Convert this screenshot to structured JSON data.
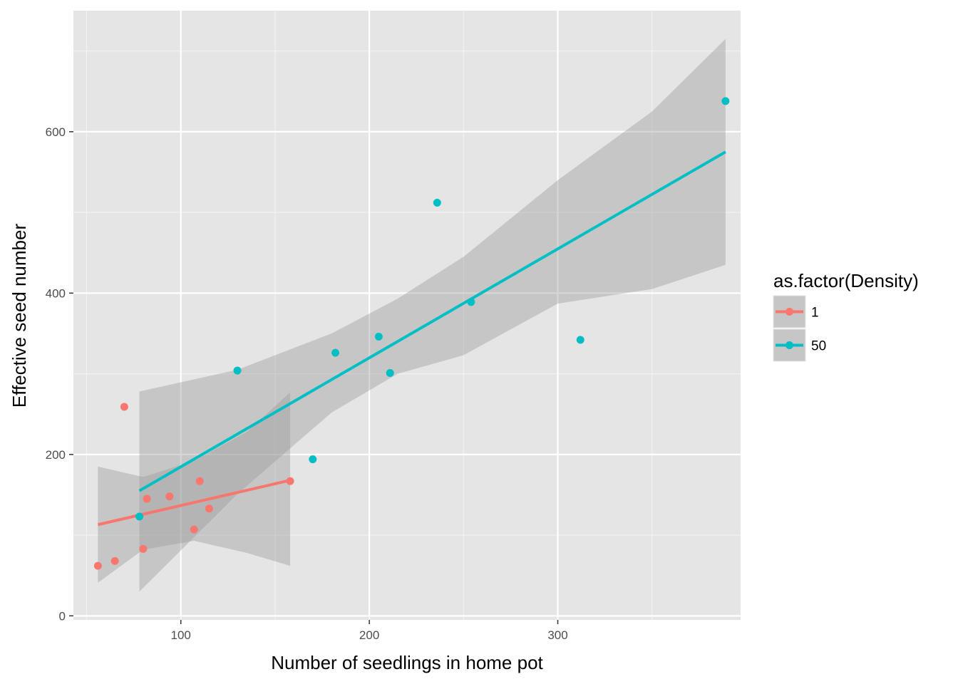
{
  "chart_data": {
    "type": "scatter",
    "xlabel": "Number of seedlings in home pot",
    "ylabel": "Effective seed number",
    "xlim": [
      43,
      397
    ],
    "ylim": [
      -5,
      750
    ],
    "x_ticks": [
      100,
      200,
      300
    ],
    "y_ticks": [
      0,
      200,
      400,
      600
    ],
    "x_minor": [
      50,
      150,
      250,
      350
    ],
    "y_minor": [
      100,
      300,
      500,
      700
    ],
    "grid": true,
    "panel_color": "#e5e5e5",
    "legend": {
      "title": "as.factor(Density)",
      "position": "right",
      "items": [
        {
          "label": "1",
          "color": "#f8766d"
        },
        {
          "label": "50",
          "color": "#00bfc4"
        }
      ]
    },
    "series": [
      {
        "name": "1",
        "color": "#f8766d",
        "points": [
          {
            "x": 56,
            "y": 62
          },
          {
            "x": 65,
            "y": 68
          },
          {
            "x": 70,
            "y": 259
          },
          {
            "x": 80,
            "y": 83
          },
          {
            "x": 82,
            "y": 145
          },
          {
            "x": 94,
            "y": 148
          },
          {
            "x": 107,
            "y": 107
          },
          {
            "x": 110,
            "y": 167
          },
          {
            "x": 115,
            "y": 133
          },
          {
            "x": 158,
            "y": 167
          }
        ],
        "fit": {
          "x": [
            56,
            158
          ],
          "y": [
            113,
            168
          ]
        },
        "ci": {
          "x": [
            56,
            80,
            107,
            135,
            158
          ],
          "lower": [
            41,
            82,
            93,
            78,
            62
          ],
          "upper": [
            185,
            172,
            192,
            228,
            277
          ]
        }
      },
      {
        "name": "50",
        "color": "#00bfc4",
        "points": [
          {
            "x": 78,
            "y": 123
          },
          {
            "x": 130,
            "y": 304
          },
          {
            "x": 170,
            "y": 194
          },
          {
            "x": 182,
            "y": 326
          },
          {
            "x": 205,
            "y": 346
          },
          {
            "x": 211,
            "y": 301
          },
          {
            "x": 236,
            "y": 512
          },
          {
            "x": 254,
            "y": 389
          },
          {
            "x": 312,
            "y": 342
          },
          {
            "x": 389,
            "y": 638
          }
        ],
        "fit": {
          "x": [
            78,
            389
          ],
          "y": [
            155,
            575
          ]
        },
        "ci": {
          "x": [
            78,
            130,
            180,
            215,
            250,
            300,
            350,
            389
          ],
          "lower": [
            30,
            151,
            252,
            300,
            323,
            387,
            405,
            435
          ],
          "upper": [
            278,
            305,
            350,
            393,
            445,
            540,
            625,
            715
          ]
        }
      }
    ]
  }
}
